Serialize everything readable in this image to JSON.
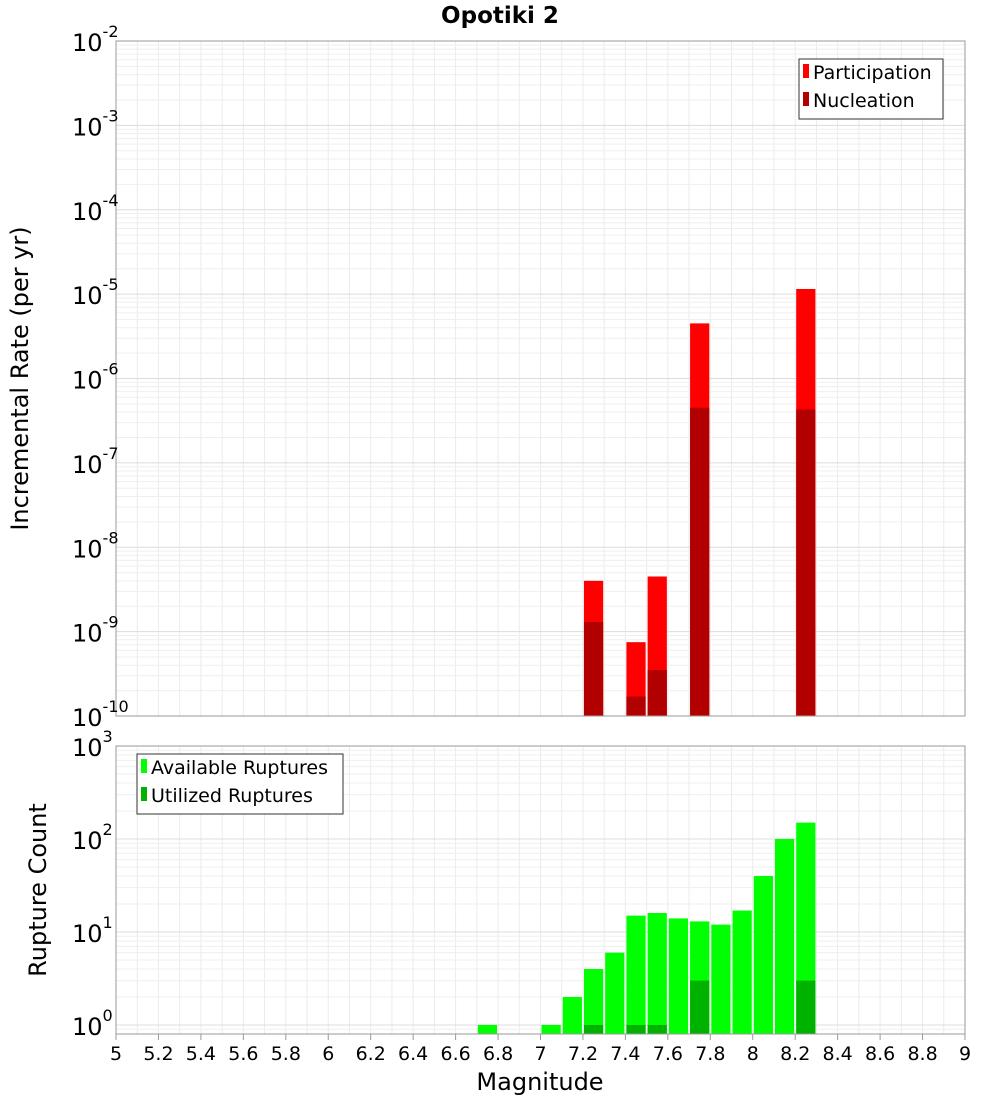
{
  "title": "Opotiki 2",
  "xlabel": "Magnitude",
  "x_ticks": [
    "5",
    "5.2",
    "5.4",
    "5.6",
    "5.8",
    "6",
    "6.2",
    "6.4",
    "6.6",
    "6.8",
    "7",
    "7.2",
    "7.4",
    "7.6",
    "7.8",
    "8",
    "8.2",
    "8.4",
    "8.6",
    "8.8",
    "9"
  ],
  "colors": {
    "participation": "#ff0000",
    "nucleation": "#b20000",
    "available": "#00ff00",
    "utilized": "#00b200"
  },
  "chart_data": [
    {
      "type": "bar",
      "ylabel": "Incremental Rate (per yr)",
      "y_scale": "log",
      "ylim": [
        1e-10,
        0.01
      ],
      "xlim": [
        5,
        9
      ],
      "y_tick_exponents": [
        "-10",
        "-9",
        "-8",
        "-7",
        "-6",
        "-5",
        "-4",
        "-3",
        "-2"
      ],
      "legend": {
        "position": "top-right",
        "entries": [
          "Participation",
          "Nucleation"
        ]
      },
      "series": [
        {
          "name": "Participation",
          "x": [
            7.25,
            7.45,
            7.55,
            7.75,
            8.25
          ],
          "values": [
            4e-09,
            7.5e-10,
            4.5e-09,
            4.5e-06,
            1.15e-05
          ]
        },
        {
          "name": "Nucleation",
          "x": [
            7.25,
            7.45,
            7.55,
            7.75,
            8.25
          ],
          "values": [
            1.3e-09,
            1.7e-10,
            3.5e-10,
            4.5e-07,
            4.3e-07
          ]
        }
      ]
    },
    {
      "type": "bar",
      "ylabel": "Rupture Count",
      "y_scale": "log",
      "ylim": [
        0.8,
        1000
      ],
      "xlim": [
        5,
        9
      ],
      "y_tick_exponents": [
        "0",
        "1",
        "2",
        "3"
      ],
      "legend": {
        "position": "top-left",
        "entries": [
          "Available Ruptures",
          "Utilized Ruptures"
        ]
      },
      "series": [
        {
          "name": "Available Ruptures",
          "x": [
            6.75,
            7.05,
            7.15,
            7.25,
            7.35,
            7.45,
            7.55,
            7.65,
            7.75,
            7.85,
            7.95,
            8.05,
            8.15,
            8.25
          ],
          "values": [
            1,
            1,
            2,
            4,
            6,
            15,
            16,
            14,
            13,
            12,
            17,
            40,
            100,
            150
          ]
        },
        {
          "name": "Utilized Ruptures",
          "x": [
            7.25,
            7.45,
            7.55,
            7.75,
            8.25
          ],
          "values": [
            1,
            1,
            1,
            3,
            3
          ]
        }
      ]
    }
  ]
}
